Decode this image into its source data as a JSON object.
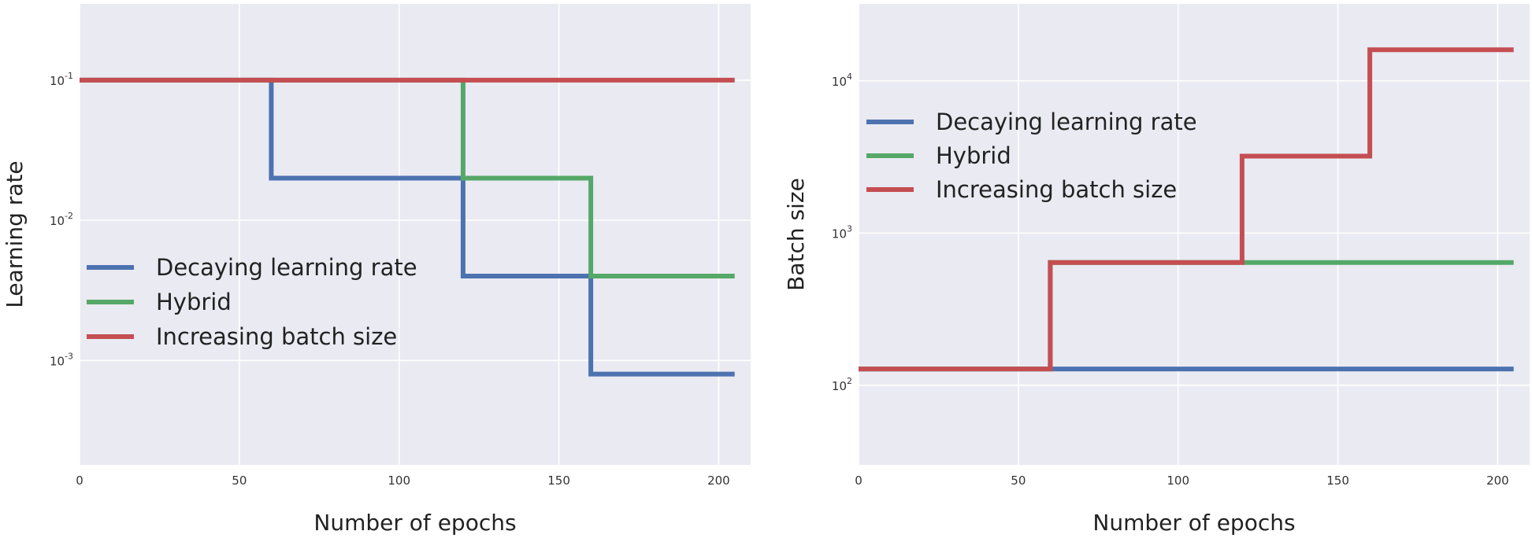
{
  "chart_data": [
    {
      "type": "line",
      "title": "",
      "xlabel": "Number of epochs",
      "ylabel": "Learning rate",
      "yscale": "log",
      "xlim": [
        0,
        210
      ],
      "ylim": [
        0.00018,
        0.35
      ],
      "xticks": [
        0,
        50,
        100,
        150,
        200
      ],
      "yticks": [
        {
          "value": 0.1,
          "base": "10",
          "exp": "-1"
        },
        {
          "value": 0.01,
          "base": "10",
          "exp": "-2"
        },
        {
          "value": 0.001,
          "base": "10",
          "exp": "-3"
        }
      ],
      "grid": true,
      "legend_position": "lower-left",
      "series": [
        {
          "name": "Decaying learning rate",
          "color": "#4c72b0",
          "points": [
            [
              0,
              0.1
            ],
            [
              60,
              0.1
            ],
            [
              60,
              0.02
            ],
            [
              120,
              0.02
            ],
            [
              120,
              0.004
            ],
            [
              160,
              0.004
            ],
            [
              160,
              0.0008
            ],
            [
              205,
              0.0008
            ]
          ]
        },
        {
          "name": "Hybrid",
          "color": "#55a868",
          "points": [
            [
              0,
              0.1
            ],
            [
              120,
              0.1
            ],
            [
              120,
              0.02
            ],
            [
              160,
              0.02
            ],
            [
              160,
              0.004
            ],
            [
              205,
              0.004
            ]
          ]
        },
        {
          "name": "Increasing batch size",
          "color": "#c44e52",
          "points": [
            [
              0,
              0.1
            ],
            [
              205,
              0.1
            ]
          ]
        }
      ]
    },
    {
      "type": "line",
      "title": "",
      "xlabel": "Number of epochs",
      "ylabel": "Batch size",
      "yscale": "log",
      "xlim": [
        0,
        210
      ],
      "ylim": [
        30,
        32000
      ],
      "xticks": [
        0,
        50,
        100,
        150,
        200
      ],
      "yticks": [
        {
          "value": 10000,
          "base": "10",
          "exp": "4"
        },
        {
          "value": 1000,
          "base": "10",
          "exp": "3"
        },
        {
          "value": 100,
          "base": "10",
          "exp": "2"
        }
      ],
      "grid": true,
      "legend_position": "upper-left",
      "series": [
        {
          "name": "Decaying learning rate",
          "color": "#4c72b0",
          "points": [
            [
              0,
              128
            ],
            [
              205,
              128
            ]
          ]
        },
        {
          "name": "Hybrid",
          "color": "#55a868",
          "points": [
            [
              0,
              128
            ],
            [
              60,
              128
            ],
            [
              60,
              640
            ],
            [
              205,
              640
            ]
          ]
        },
        {
          "name": "Increasing batch size",
          "color": "#c44e52",
          "points": [
            [
              0,
              128
            ],
            [
              60,
              128
            ],
            [
              60,
              640
            ],
            [
              120,
              640
            ],
            [
              120,
              3200
            ],
            [
              160,
              3200
            ],
            [
              160,
              16000
            ],
            [
              205,
              16000
            ]
          ]
        }
      ]
    }
  ]
}
